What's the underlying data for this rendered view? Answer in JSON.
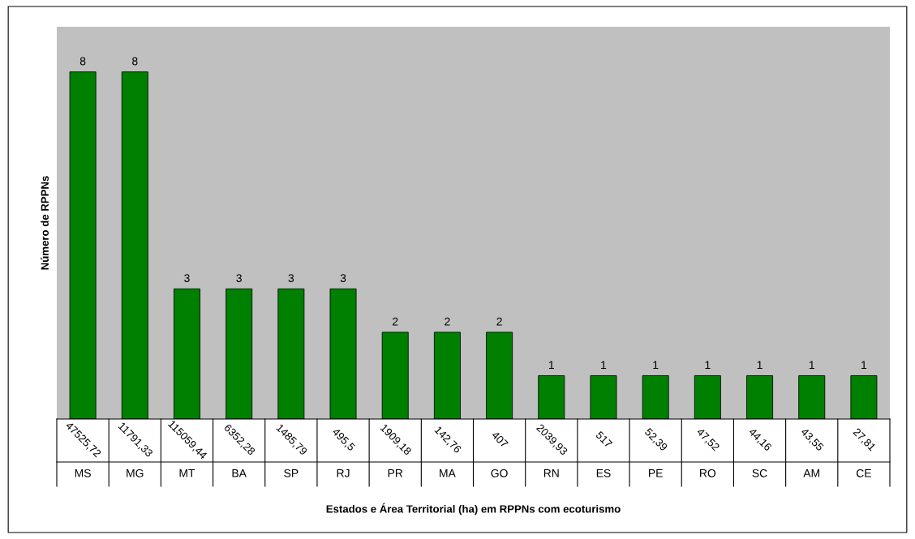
{
  "chart_data": {
    "type": "bar",
    "xlabel": "Estados e Área Territorial (ha) em RPPNs com ecoturismo",
    "ylabel": "Número de RPPNs",
    "categories": [
      "MS",
      "MG",
      "MT",
      "BA",
      "SP",
      "RJ",
      "PR",
      "MA",
      "GO",
      "RN",
      "ES",
      "PE",
      "RO",
      "SC",
      "AM",
      "CE"
    ],
    "values": [
      8,
      8,
      3,
      3,
      3,
      3,
      2,
      2,
      2,
      1,
      1,
      1,
      1,
      1,
      1,
      1
    ],
    "color": "#008000",
    "data_labels": true,
    "annotations": [
      "47525,72",
      "11791,33",
      "115059,44",
      "6352,28",
      "1485,79",
      "495,5",
      "1909,18",
      "142,76",
      "407",
      "2039,93",
      "517",
      "52,39",
      "47,52",
      "44,16",
      "43,55",
      "27,81"
    ]
  }
}
